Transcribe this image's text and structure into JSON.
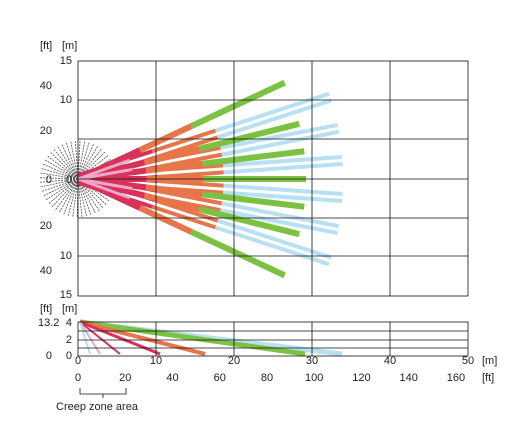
{
  "top_view": {
    "unit_ft": "[ft]",
    "unit_m": "[m]",
    "m_labels": [
      "15",
      "10",
      "0",
      "10",
      "15"
    ],
    "ft_labels": [
      "40",
      "20",
      "0",
      "20",
      "40"
    ]
  },
  "side_view": {
    "unit_ft": "[ft]",
    "unit_m": "[m]",
    "m_labels": [
      "4",
      "2",
      "0"
    ],
    "ft_labels": [
      "13.2",
      "0"
    ]
  },
  "x_axis": {
    "m_labels": [
      "0",
      "10",
      "20",
      "30",
      "40",
      "50"
    ],
    "m_unit": "[m]",
    "ft_labels": [
      "0",
      "20",
      "40",
      "60",
      "80",
      "100",
      "120",
      "140",
      "160"
    ],
    "ft_unit": "[ft]"
  },
  "caption": "Creep zone area"
}
